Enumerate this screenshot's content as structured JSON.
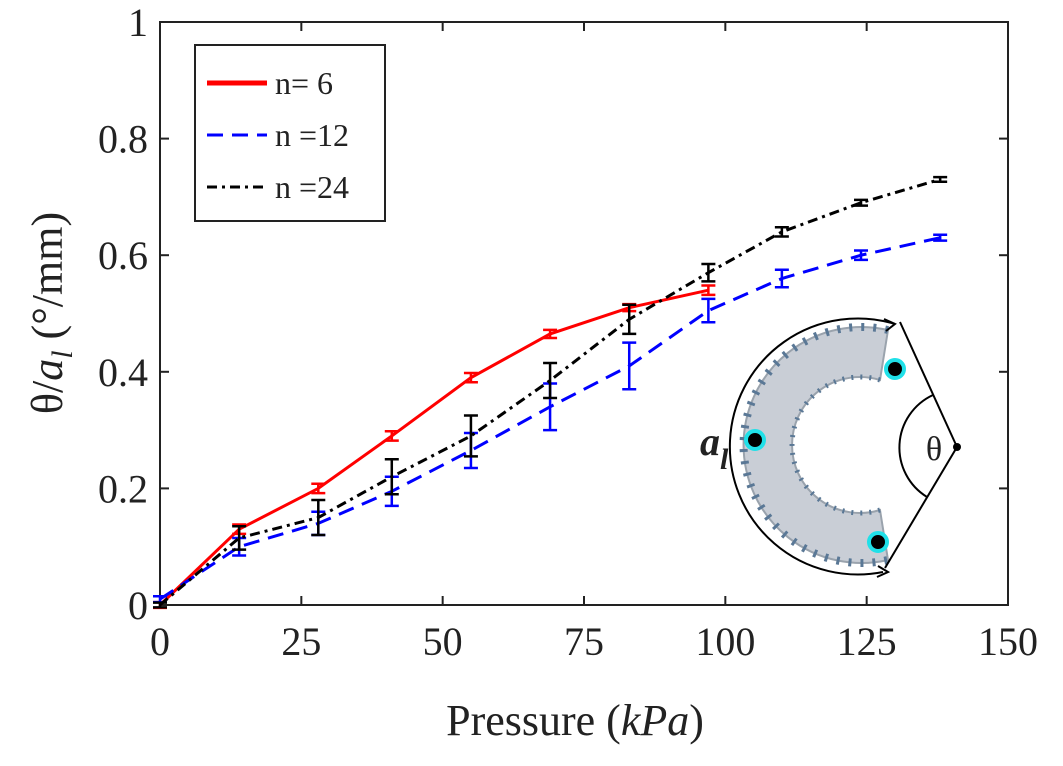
{
  "chart_data": {
    "type": "line",
    "xlabel": [
      "Pressure (",
      "kPa",
      ")"
    ],
    "ylabel": [
      "θ/",
      "a",
      "l",
      " (°/mm)"
    ],
    "xlim": [
      0,
      150
    ],
    "xticks": [
      0,
      25,
      50,
      75,
      100,
      125,
      150
    ],
    "ylim": [
      0,
      1
    ],
    "yticks": [
      0,
      0.2,
      0.4,
      0.6,
      0.8,
      1
    ],
    "legend": "upper left",
    "series": [
      {
        "name": "n= 6",
        "color": "#ff0000",
        "linestyle": "solid",
        "x": [
          0,
          14,
          28,
          41,
          55,
          69,
          83,
          97
        ],
        "values": [
          0,
          0.13,
          0.2,
          0.29,
          0.39,
          0.465,
          0.51,
          0.54
        ],
        "errors": [
          0.005,
          0.008,
          0.008,
          0.008,
          0.008,
          0.007,
          0.006,
          0.008
        ]
      },
      {
        "name": "n =12",
        "color": "#0000ff",
        "linestyle": "dashed",
        "x": [
          0,
          14,
          28,
          41,
          55,
          69,
          83,
          97,
          110,
          124,
          138
        ],
        "values": [
          0.01,
          0.1,
          0.14,
          0.195,
          0.265,
          0.34,
          0.41,
          0.505,
          0.56,
          0.6,
          0.63
        ],
        "errors": [
          0.005,
          0.015,
          0.02,
          0.025,
          0.03,
          0.04,
          0.04,
          0.02,
          0.015,
          0.008,
          0.005
        ]
      },
      {
        "name": "n =24",
        "color": "#000000",
        "linestyle": "dashdot",
        "x": [
          0,
          14,
          28,
          41,
          55,
          69,
          83,
          97,
          110,
          124,
          138
        ],
        "values": [
          0,
          0.115,
          0.15,
          0.22,
          0.29,
          0.385,
          0.49,
          0.57,
          0.64,
          0.69,
          0.73
        ],
        "errors": [
          0.004,
          0.02,
          0.03,
          0.03,
          0.035,
          0.03,
          0.025,
          0.015,
          0.008,
          0.005,
          0.004
        ]
      }
    ],
    "inset_labels": {
      "arc": [
        "a",
        "l"
      ],
      "angle": "θ"
    }
  }
}
